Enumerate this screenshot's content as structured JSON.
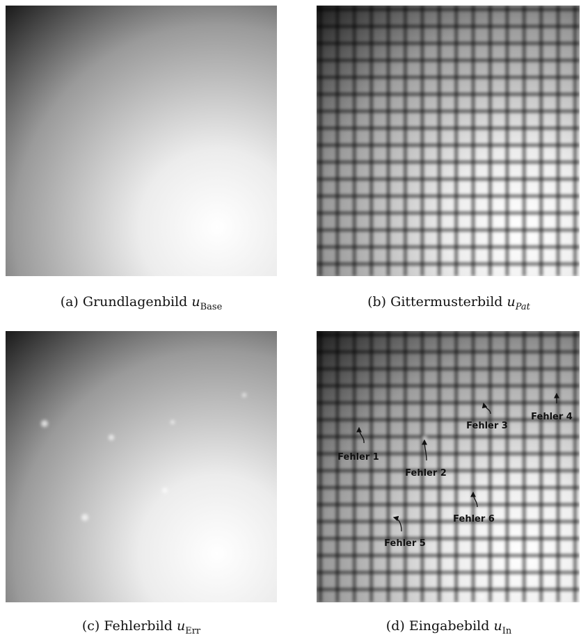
{
  "figures": [
    {
      "label": "(a)",
      "caption": "Grundlagenbild",
      "symbol": "u",
      "subscript": "Base"
    },
    {
      "label": "(b)",
      "caption": "Gittermusterbild",
      "symbol": "u",
      "subscript": "Pat"
    },
    {
      "label": "(c)",
      "caption": "Fehlerbild",
      "symbol": "u",
      "subscript": "Err"
    },
    {
      "label": "(d)",
      "caption": "Eingabebild",
      "symbol": "u",
      "subscript": "In"
    }
  ],
  "annotations": [
    "Fehler 1",
    "Fehler 2",
    "Fehler 3",
    "Fehler 4",
    "Fehler 5",
    "Fehler 6"
  ]
}
